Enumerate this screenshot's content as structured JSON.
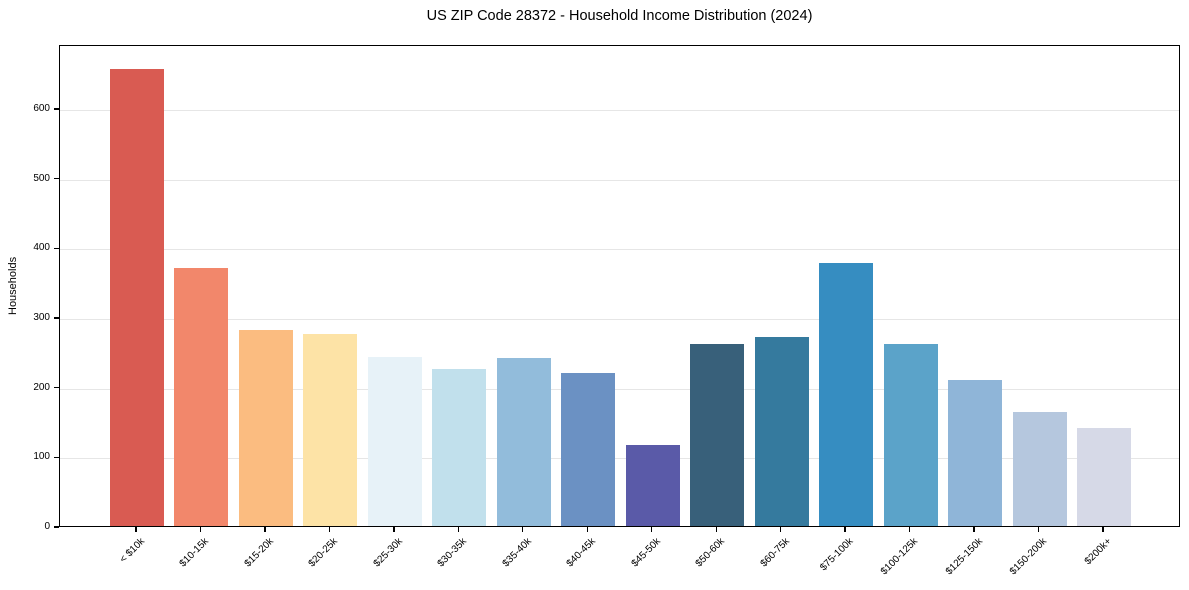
{
  "chart_data": {
    "type": "bar",
    "title": "US ZIP Code 28372 - Household Income Distribution (2024)",
    "xlabel": "",
    "ylabel": "Households",
    "categories": [
      "< $10k",
      "$10-15k",
      "$15-20k",
      "$20-25k",
      "$25-30k",
      "$30-35k",
      "$35-40k",
      "$40-45k",
      "$45-50k",
      "$50-60k",
      "$60-75k",
      "$75-100k",
      "$100-125k",
      "$125-150k",
      "$150-200k",
      "$200k+"
    ],
    "values": [
      656,
      371,
      282,
      275,
      242,
      225,
      241,
      219,
      116,
      261,
      272,
      378,
      262,
      210,
      163,
      141
    ],
    "bar_colors": [
      "#d95b52",
      "#f2876b",
      "#fbbc80",
      "#fde3a6",
      "#e7f2f8",
      "#c1e0ec",
      "#92bcdb",
      "#6b91c3",
      "#5a5aa8",
      "#38607a",
      "#357a9e",
      "#368dc1",
      "#5ba3c9",
      "#8fb5d8",
      "#b5c7de",
      "#d6d9e7"
    ],
    "yticks": [
      0,
      100,
      200,
      300,
      400,
      500,
      600
    ],
    "ylim": [
      0,
      692
    ],
    "grid": "horizontal",
    "gridline_color": "#e6e6e6",
    "legend": "none",
    "background_color": "#ffffff",
    "text_color": "#000000"
  }
}
